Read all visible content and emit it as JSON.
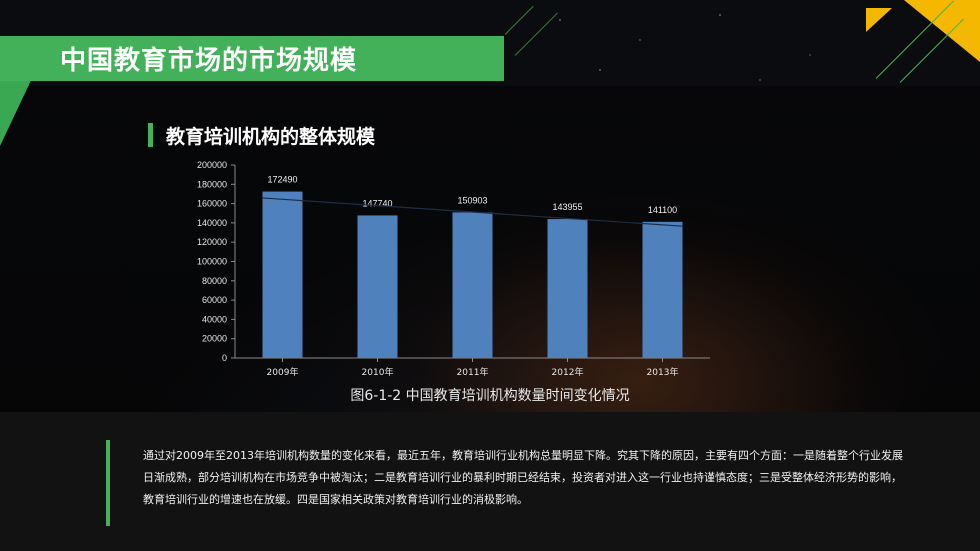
{
  "page": {
    "title": "中国教育市场的市场规模",
    "section_title": "教育培训机构的整体规模",
    "caption": "图6-1-2 中国教育培训机构数量时间变化情况",
    "paragraph": "通过对2009年至2013年培训机构数量的变化来看，最近五年，教育培训行业机构总量明显下降。究其下降的原因，主要有四个方面：一是随着整个行业发展日渐成熟，部分培训机构在市场竞争中被淘汰；二是教育培训行业的暴利时期已经结束，投资者对进入这一行业也持谨慎态度；三是受整体经济形势的影响，教育培训行业的增速也在放缓。四是国家相关政策对教育培训行业的消极影响。"
  },
  "colors": {
    "accent_green": "#42b159",
    "accent_yellow": "#f5b800",
    "bar": "#4f81bd",
    "trend": "#1f2d44"
  },
  "chart_data": {
    "type": "bar",
    "categories": [
      "2009年",
      "2010年",
      "2011年",
      "2012年",
      "2013年"
    ],
    "values": [
      172490,
      147740,
      150903,
      143955,
      141100
    ],
    "data_labels": [
      "172490",
      "147740",
      "150903",
      "143955",
      "141100"
    ],
    "trendline": "linear",
    "ylim": [
      0,
      200000
    ],
    "yticks": [
      "0",
      "20000",
      "40000",
      "60000",
      "80000",
      "100000",
      "120000",
      "140000",
      "160000",
      "180000",
      "200000"
    ],
    "title": "",
    "xlabel": "",
    "ylabel": "",
    "grid": false,
    "legend": "none"
  }
}
